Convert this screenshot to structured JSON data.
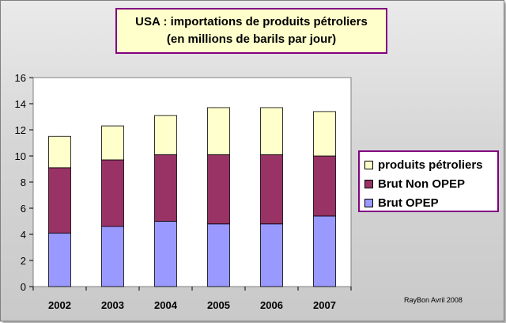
{
  "chart_data": {
    "type": "bar",
    "stacked": true,
    "title": "USA : importations de produits pétroliers",
    "subtitle": "(en millions de barils par jour)",
    "categories": [
      "2002",
      "2003",
      "2004",
      "2005",
      "2006",
      "2007"
    ],
    "series": [
      {
        "name": "Brut OPEP",
        "color": "#9999ff",
        "values": [
          4.1,
          4.6,
          5.0,
          4.8,
          4.8,
          5.4
        ]
      },
      {
        "name": "Brut Non OPEP",
        "color": "#993366",
        "values": [
          5.0,
          5.1,
          5.1,
          5.3,
          5.3,
          4.6
        ]
      },
      {
        "name": "produits pétroliers",
        "color": "#ffffcc",
        "values": [
          2.4,
          2.6,
          3.0,
          3.6,
          3.6,
          3.4
        ]
      }
    ],
    "legend_order": [
      "produits pétroliers",
      "Brut Non OPEP",
      "Brut OPEP"
    ],
    "ylim": [
      0,
      16
    ],
    "yticks": [
      0,
      2,
      4,
      6,
      8,
      10,
      12,
      14,
      16
    ],
    "grid": false,
    "legend_position": "right"
  },
  "credit": "RayBon Avril 2008"
}
